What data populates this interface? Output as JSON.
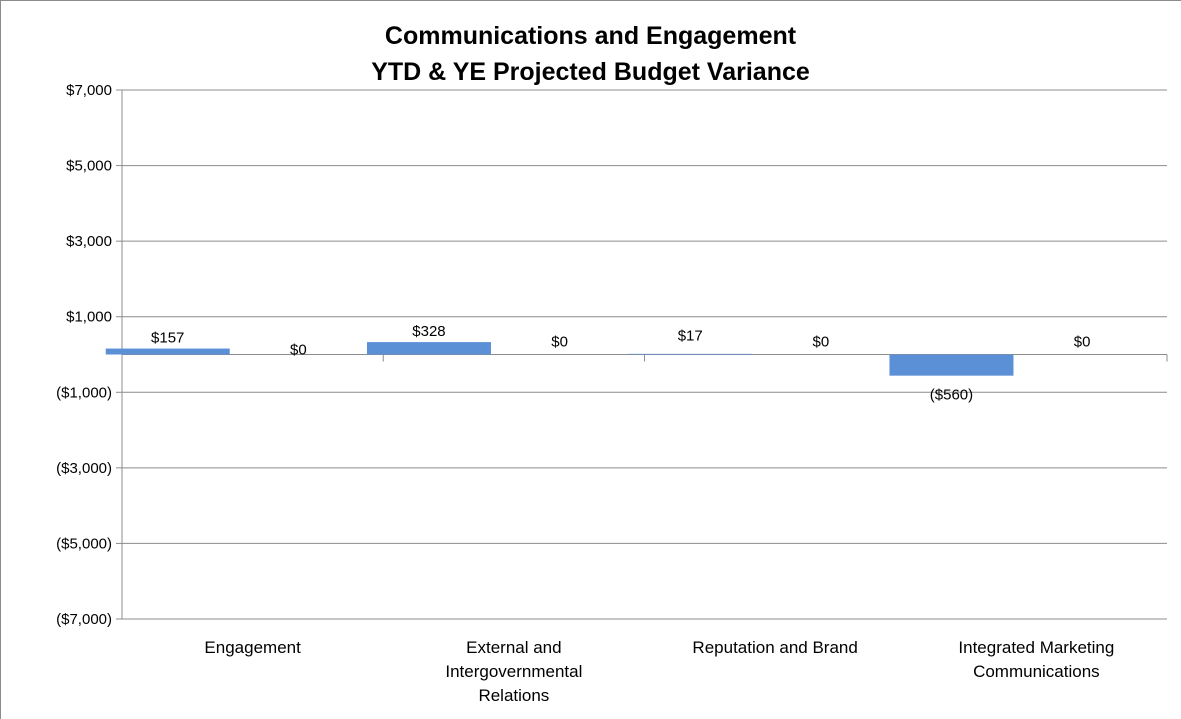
{
  "chart_data": {
    "type": "bar",
    "title": "Communications and Engagement",
    "subtitle": "YTD & YE Projected Budget Variance",
    "categories": [
      "Engagement",
      "External and Intergovernmental Relations",
      "Reputation and Brand",
      "Integrated Marketing Communications"
    ],
    "category_labels": [
      "Engagement",
      "External and\nIntergovernmental\nRelations",
      "Reputation and Brand",
      "Integrated Marketing\nCommunications"
    ],
    "series": [
      {
        "values": [
          157,
          328,
          17,
          -560
        ],
        "labels": [
          "$157",
          "$328",
          "$17",
          "($560)"
        ],
        "color": "#5b8fd6"
      },
      {
        "values": [
          0,
          0,
          0,
          0
        ],
        "labels": [
          "$0",
          "$0",
          "$0",
          "$0"
        ],
        "color": "#c0504d"
      }
    ],
    "ylim": [
      -7000,
      7000
    ],
    "yticks": [
      7000,
      5000,
      3000,
      1000,
      -1000,
      -3000,
      -5000,
      -7000
    ],
    "ytick_labels": [
      "$7,000",
      "$5,000",
      "$3,000",
      "$1,000",
      "($1,000)",
      "($3,000)",
      "($5,000)",
      "($7,000)"
    ],
    "grid": true,
    "legend": "none",
    "xlabel": "",
    "ylabel": ""
  }
}
